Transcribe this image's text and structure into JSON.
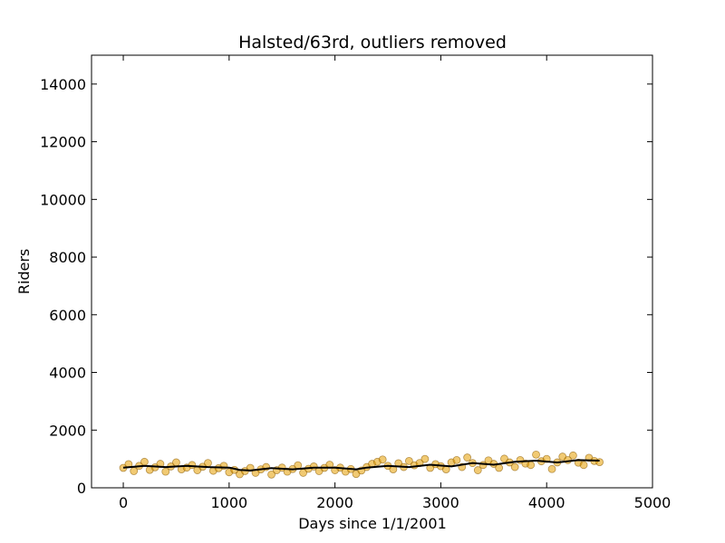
{
  "chart_data": {
    "type": "scatter",
    "title": "Halsted/63rd, outliers removed",
    "xlabel": "Days since 1/1/2001",
    "ylabel": "Riders",
    "xlim": [
      -300,
      5000
    ],
    "ylim": [
      0,
      15000
    ],
    "xticks": [
      0,
      1000,
      2000,
      3000,
      4000,
      5000
    ],
    "yticks": [
      0,
      2000,
      4000,
      6000,
      8000,
      10000,
      12000,
      14000
    ],
    "grid": false,
    "point_color": "#E69F00",
    "point_stroke": "#8B5A00",
    "trend_color": "#000000",
    "series": [
      {
        "kind": "points",
        "x": [
          0,
          50,
          100,
          150,
          200,
          250,
          300,
          350,
          400,
          450,
          500,
          550,
          600,
          650,
          700,
          750,
          800,
          850,
          900,
          950,
          1000,
          1050,
          1100,
          1150,
          1200,
          1250,
          1300,
          1350,
          1400,
          1450,
          1500,
          1550,
          1600,
          1650,
          1700,
          1750,
          1800,
          1850,
          1900,
          1950,
          2000,
          2050,
          2100,
          2150,
          2200,
          2250,
          2300,
          2350,
          2400,
          2450,
          2500,
          2550,
          2600,
          2650,
          2700,
          2750,
          2800,
          2850,
          2900,
          2950,
          3000,
          3050,
          3100,
          3150,
          3200,
          3250,
          3300,
          3350,
          3400,
          3450,
          3500,
          3550,
          3600,
          3650,
          3700,
          3750,
          3800,
          3850,
          3900,
          3950,
          4000,
          4050,
          4100,
          4150,
          4200,
          4250,
          4300,
          4350,
          4400,
          4450,
          4500
        ],
        "y": [
          690,
          820,
          580,
          760,
          900,
          620,
          710,
          830,
          560,
          740,
          880,
          640,
          700,
          790,
          610,
          730,
          860,
          590,
          680,
          760,
          540,
          620,
          470,
          580,
          690,
          520,
          640,
          720,
          460,
          610,
          700,
          560,
          650,
          780,
          520,
          660,
          740,
          580,
          690,
          800,
          610,
          700,
          560,
          650,
          480,
          600,
          720,
          830,
          900,
          980,
          760,
          640,
          850,
          720,
          930,
          780,
          860,
          1000,
          690,
          820,
          750,
          640,
          880,
          960,
          720,
          1050,
          860,
          610,
          790,
          950,
          830,
          690,
          1010,
          880,
          720,
          960,
          840,
          790,
          1150,
          920,
          1000,
          650,
          880,
          1080,
          960,
          1120,
          870,
          790,
          1040,
          930,
          890
        ]
      },
      {
        "kind": "trend",
        "x": [
          0,
          200,
          400,
          600,
          800,
          1000,
          1100,
          1200,
          1400,
          1600,
          1800,
          2000,
          2200,
          2300,
          2500,
          2700,
          2900,
          3100,
          3300,
          3500,
          3700,
          3900,
          4100,
          4300,
          4500
        ],
        "y": [
          700,
          760,
          720,
          760,
          720,
          700,
          620,
          600,
          680,
          640,
          700,
          700,
          640,
          700,
          760,
          720,
          800,
          740,
          860,
          800,
          900,
          940,
          880,
          960,
          940
        ]
      }
    ]
  }
}
